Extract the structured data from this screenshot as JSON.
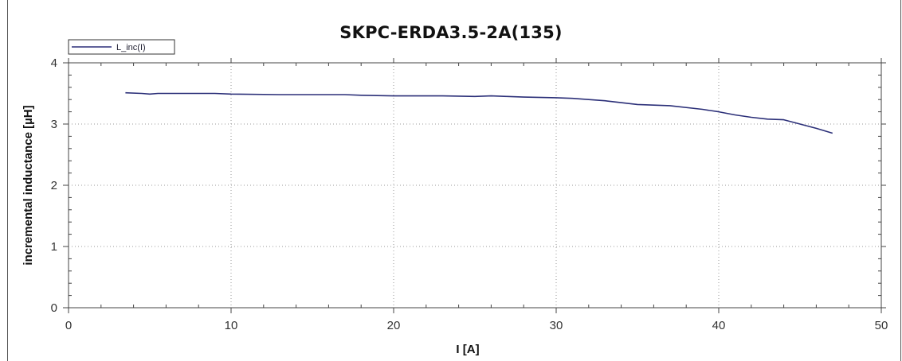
{
  "chart_data": {
    "type": "line",
    "title": "SKPC-ERDA3.5-2A(135)",
    "xlabel": "I [A]",
    "ylabel": "incremental inductance [µH]",
    "xlim": [
      0,
      50
    ],
    "ylim": [
      0,
      4
    ],
    "x_ticks": [
      "0",
      "10",
      "20",
      "30",
      "40",
      "50"
    ],
    "y_ticks": [
      "0",
      "1",
      "2",
      "3",
      "4"
    ],
    "grid": true,
    "legend_position": "top-left",
    "series": [
      {
        "name": "L_inc(I)",
        "color": "#2b2f78",
        "x": [
          3.5,
          4.5,
          5.0,
          5.5,
          7,
          9,
          10,
          13,
          17,
          18,
          20,
          23,
          25,
          26,
          27,
          28,
          30,
          31,
          33,
          35,
          37,
          39,
          40,
          41,
          42,
          43,
          44,
          45,
          46,
          47
        ],
        "y": [
          3.51,
          3.5,
          3.49,
          3.5,
          3.5,
          3.5,
          3.49,
          3.48,
          3.48,
          3.47,
          3.46,
          3.46,
          3.45,
          3.46,
          3.45,
          3.44,
          3.43,
          3.42,
          3.38,
          3.32,
          3.3,
          3.24,
          3.2,
          3.15,
          3.11,
          3.08,
          3.07,
          3.0,
          2.93,
          2.85
        ]
      }
    ]
  }
}
